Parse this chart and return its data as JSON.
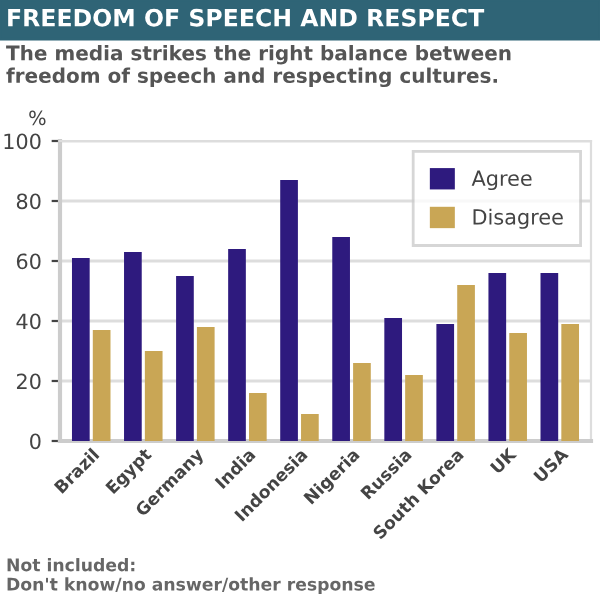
{
  "chart_data": {
    "type": "bar",
    "title": "FREEDOM OF SPEECH AND RESPECT",
    "subtitle": "The media strikes the right balance between freedom of speech and respecting cultures.",
    "ylabel": "%",
    "categories": [
      "Brazil",
      "Egypt",
      "Germany",
      "India",
      "Indonesia",
      "Nigeria",
      "Russia",
      "South Korea",
      "UK",
      "USA"
    ],
    "series": [
      {
        "name": "Agree",
        "color": "#2e1a7e",
        "values": [
          61,
          63,
          55,
          64,
          87,
          68,
          41,
          39,
          56,
          56
        ]
      },
      {
        "name": "Disagree",
        "color": "#c9a655",
        "values": [
          37,
          30,
          38,
          16,
          9,
          26,
          22,
          52,
          36,
          39
        ]
      }
    ],
    "ylim": [
      0,
      100
    ],
    "yticks": [
      0,
      20,
      40,
      60,
      80,
      100
    ],
    "grid": "y",
    "legend": "top right",
    "annotations": [
      "Not included:\nDon't know/no answer/other response"
    ]
  }
}
